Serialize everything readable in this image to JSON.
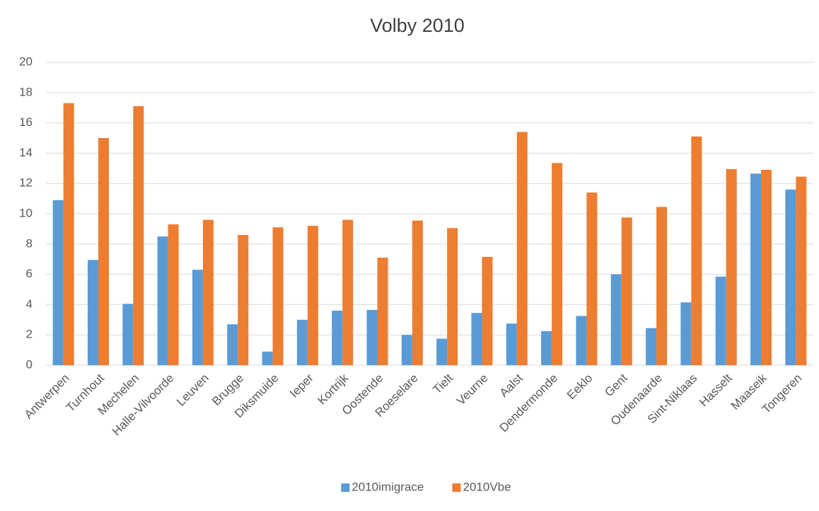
{
  "chart_data": {
    "type": "bar",
    "title": "Volby 2010",
    "categories": [
      "Antwerpen",
      "Turnhout",
      "Mechelen",
      "Halle-Vilvoorde",
      "Leuven",
      "Brugge",
      "Diksmuide",
      "Ieper",
      "Kortrijk",
      "Oostende",
      "Roeselare",
      "Tielt",
      "Veurne",
      "Aalst",
      "Dendermonde",
      "Eeklo",
      "Gent",
      "Oudenaarde",
      "Sint-Niklaas",
      "Hasselt",
      "Maaseik",
      "Tongeren"
    ],
    "series": [
      {
        "name": "2010imigrace",
        "color": "#5b9bd5",
        "values": [
          10.9,
          6.95,
          4.05,
          8.5,
          6.3,
          2.7,
          0.9,
          3.0,
          3.6,
          3.65,
          2.0,
          1.75,
          3.45,
          2.75,
          2.25,
          3.25,
          6.0,
          2.45,
          4.15,
          5.85,
          12.65,
          11.6
        ]
      },
      {
        "name": "2010Vbe",
        "color": "#ed7d31",
        "values": [
          17.3,
          15.0,
          17.1,
          9.3,
          9.6,
          8.6,
          9.1,
          9.2,
          9.6,
          7.1,
          9.55,
          9.05,
          7.15,
          15.4,
          13.35,
          11.4,
          9.75,
          10.45,
          15.1,
          12.95,
          12.9,
          12.45
        ]
      }
    ],
    "ylim": [
      0,
      20
    ],
    "yticks": [
      0,
      2,
      4,
      6,
      8,
      10,
      12,
      14,
      16,
      18,
      20
    ],
    "grid": true,
    "legend": "bottom"
  }
}
